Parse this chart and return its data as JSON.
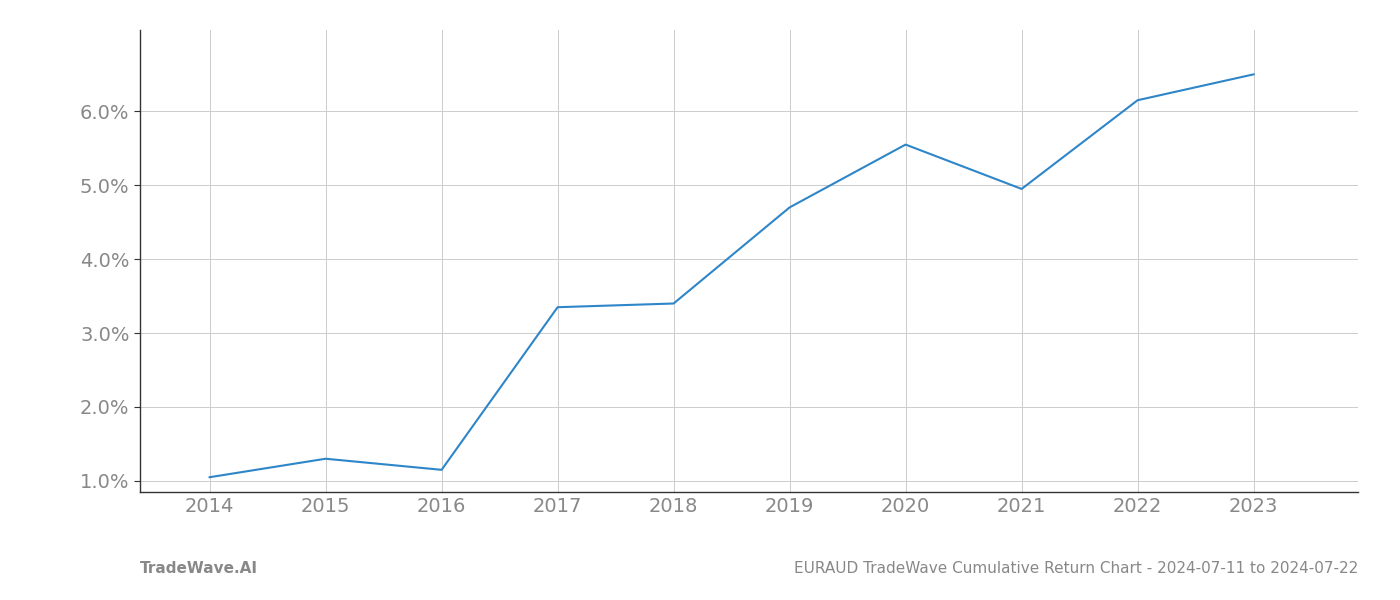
{
  "x": [
    2014,
    2015,
    2016,
    2017,
    2018,
    2019,
    2020,
    2021,
    2022,
    2023
  ],
  "y": [
    1.05,
    1.3,
    1.15,
    3.35,
    3.4,
    4.7,
    5.55,
    4.95,
    6.15,
    6.5
  ],
  "line_color": "#2e86c8",
  "line_width": 1.5,
  "background_color": "#ffffff",
  "grid_color": "#cccccc",
  "footer_left": "TradeWave.AI",
  "footer_right": "EURAUD TradeWave Cumulative Return Chart - 2024-07-11 to 2024-07-22",
  "ylim": [
    0.85,
    7.1
  ],
  "xlim": [
    2013.4,
    2023.9
  ],
  "yticks": [
    1.0,
    2.0,
    3.0,
    4.0,
    5.0,
    6.0
  ],
  "xticks": [
    2014,
    2015,
    2016,
    2017,
    2018,
    2019,
    2020,
    2021,
    2022,
    2023
  ],
  "tick_label_color": "#888888",
  "tick_fontsize": 14,
  "footer_fontsize": 11,
  "spine_color": "#333333"
}
